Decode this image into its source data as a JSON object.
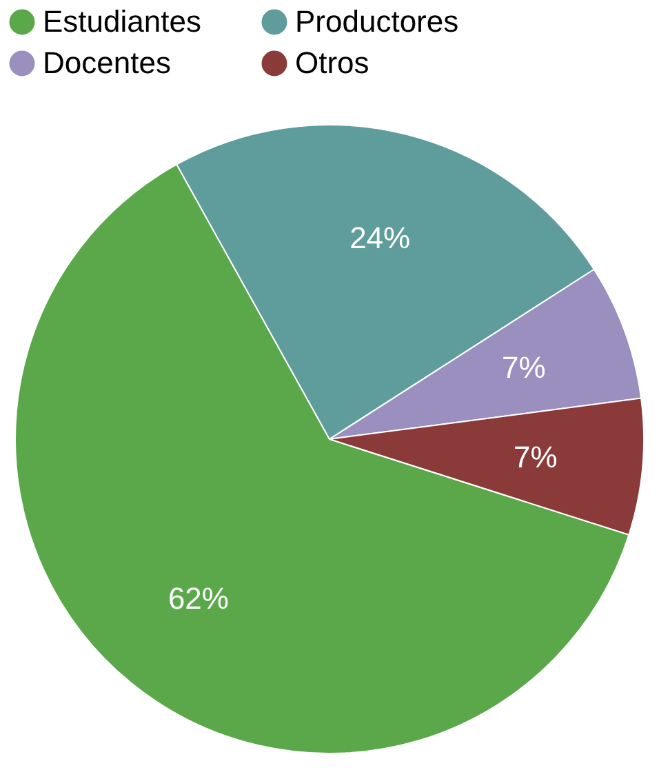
{
  "chart_data": {
    "type": "pie",
    "categories": [
      "Estudiantes",
      "Productores",
      "Docentes",
      "Otros"
    ],
    "values": [
      62,
      24,
      7,
      7
    ],
    "colors": [
      "#5aa84a",
      "#5f9c9c",
      "#9a8fbf",
      "#8b3a3a"
    ],
    "value_labels": [
      "62%",
      "24%",
      "7%",
      "7%"
    ],
    "legend": "top"
  }
}
